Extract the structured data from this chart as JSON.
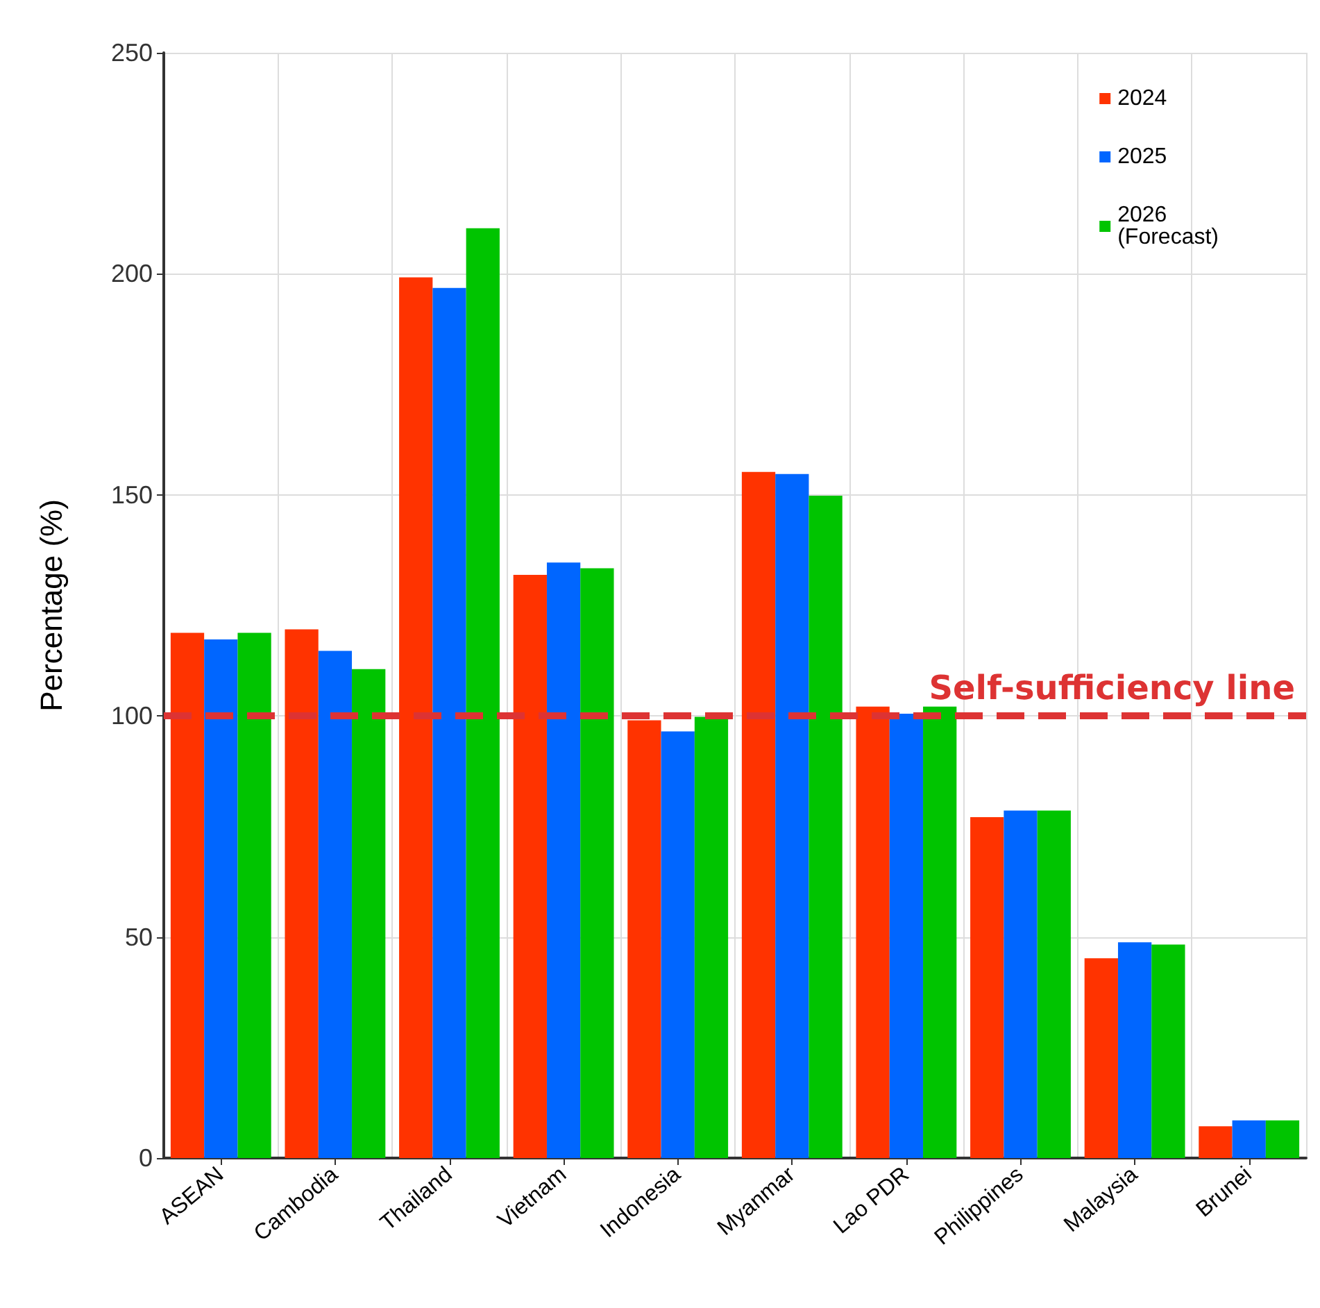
{
  "chart_data": {
    "type": "bar",
    "ylabel": "Percentage (%)",
    "categories": [
      "ASEAN",
      "Cambodia",
      "Thailand",
      "Vietnam",
      "Indonesia",
      "Myanmar",
      "Lao PDR",
      "Philippines",
      "Malaysia",
      "Brunei"
    ],
    "series": [
      {
        "name": "2024",
        "color": "#ff3300",
        "values": [
          118.8,
          119.6,
          199.2,
          131.9,
          99,
          155.2,
          102.1,
          77.1,
          45.2,
          7.2
        ]
      },
      {
        "name": "2025",
        "color": "#0066ff",
        "values": [
          117.3,
          114.7,
          196.8,
          134.7,
          96.5,
          154.7,
          100.5,
          78.6,
          48.8,
          8.5
        ]
      },
      {
        "name": "2026\n(Forecast)",
        "color": "#00c400",
        "values": [
          118.8,
          110.6,
          210.3,
          133.4,
          99.8,
          149.8,
          102.1,
          78.6,
          48.3,
          8.5
        ]
      }
    ],
    "ylim": [
      0,
      250
    ],
    "yticks": [
      0,
      50,
      100,
      150,
      200,
      250
    ],
    "grid": true,
    "legend": "top right",
    "ref_lines": [
      {
        "axis": "y",
        "value": 100,
        "label": "Self-sufficiency line",
        "color": "#dd3333",
        "line_style": "dashed"
      }
    ]
  }
}
